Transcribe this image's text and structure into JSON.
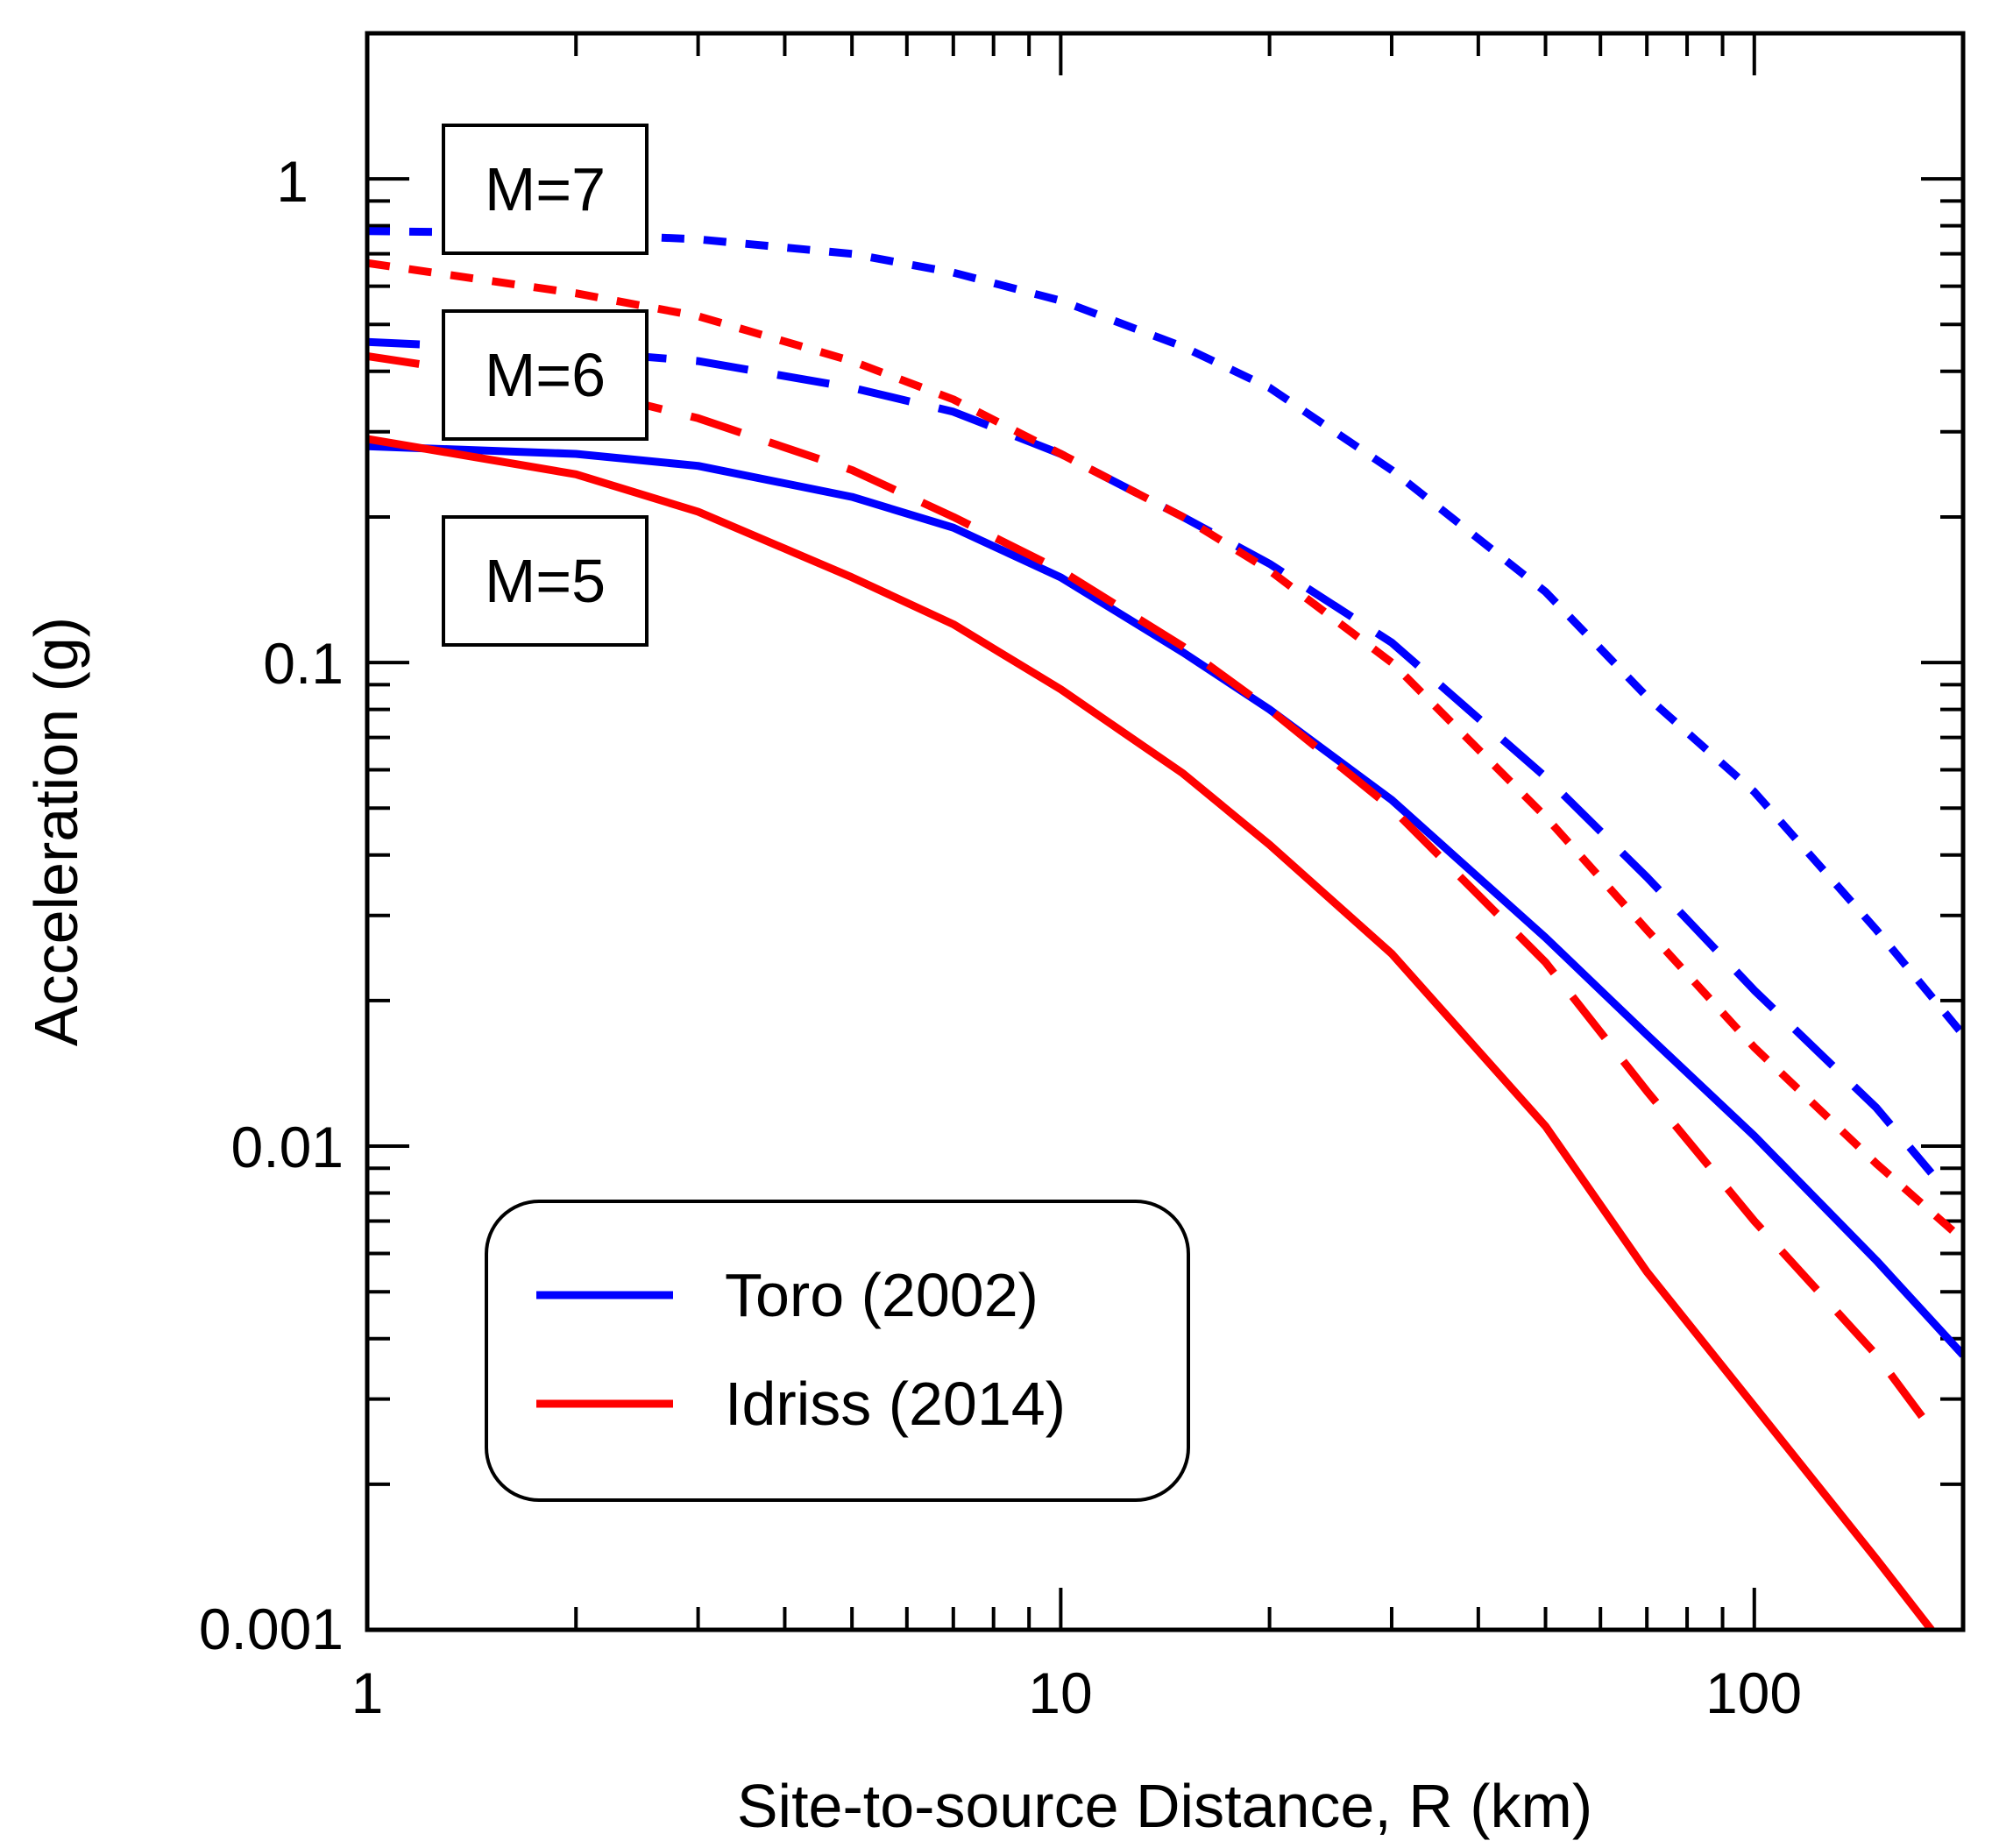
{
  "chart_data": {
    "type": "line",
    "title": "",
    "xlabel": "Site-to-source Distance, R (km)",
    "ylabel": "Acceleration (g)",
    "xscale": "log",
    "yscale": "log",
    "xlim": [
      1,
      200
    ],
    "ylim": [
      0.001,
      2
    ],
    "x_ticks": [
      {
        "value": 1,
        "label": "1"
      },
      {
        "value": 10,
        "label": "10"
      },
      {
        "value": 100,
        "label": "100"
      }
    ],
    "y_ticks": [
      {
        "value": 0.001,
        "label": "0.001"
      },
      {
        "value": 0.01,
        "label": "0.01"
      },
      {
        "value": 0.1,
        "label": "0.1"
      },
      {
        "value": 1,
        "label": "1"
      }
    ],
    "magnitude_labels": [
      {
        "label": "M=7",
        "magnitude": 7
      },
      {
        "label": "M=6",
        "magnitude": 6
      },
      {
        "label": "M=5",
        "magnitude": 5
      }
    ],
    "legend": {
      "position": "bottom-left",
      "entries": [
        {
          "label": "Toro (2002)",
          "color": "#0000ff"
        },
        {
          "label": "Idriss (2014)",
          "color": "#ff0000"
        }
      ]
    },
    "series": [
      {
        "model": "Toro (2002)",
        "magnitude": 5,
        "style": "solid",
        "color": "#0000ff",
        "x": [
          1,
          2,
          3,
          5,
          7,
          10,
          15,
          20,
          30,
          50,
          70,
          100,
          150,
          200
        ],
        "y": [
          0.28,
          0.27,
          0.255,
          0.22,
          0.19,
          0.15,
          0.105,
          0.08,
          0.052,
          0.027,
          0.017,
          0.0105,
          0.0058,
          0.0037
        ]
      },
      {
        "model": "Toro (2002)",
        "magnitude": 6,
        "style": "dashed",
        "color": "#0000ff",
        "x": [
          1,
          2,
          3,
          5,
          7,
          10,
          15,
          20,
          30,
          50,
          70,
          100,
          150,
          180
        ],
        "y": [
          0.46,
          0.44,
          0.42,
          0.37,
          0.33,
          0.27,
          0.2,
          0.16,
          0.11,
          0.058,
          0.036,
          0.021,
          0.012,
          0.0088
        ]
      },
      {
        "model": "Toro (2002)",
        "magnitude": 7,
        "style": "dotted",
        "color": "#0000ff",
        "x": [
          1,
          2,
          3,
          5,
          7,
          10,
          15,
          20,
          30,
          50,
          70,
          100,
          150,
          200
        ],
        "y": [
          0.78,
          0.77,
          0.75,
          0.7,
          0.64,
          0.56,
          0.45,
          0.37,
          0.25,
          0.14,
          0.085,
          0.054,
          0.028,
          0.017
        ]
      },
      {
        "model": "Idriss (2014)",
        "magnitude": 5,
        "style": "solid",
        "color": "#ff0000",
        "x": [
          1,
          2,
          3,
          5,
          7,
          10,
          15,
          20,
          30,
          50,
          70,
          100,
          150,
          180
        ],
        "y": [
          0.29,
          0.245,
          0.205,
          0.15,
          0.12,
          0.088,
          0.059,
          0.042,
          0.025,
          0.011,
          0.0055,
          0.0029,
          0.0014,
          0.001
        ]
      },
      {
        "model": "Idriss (2014)",
        "magnitude": 6,
        "style": "dashed",
        "color": "#ff0000",
        "x": [
          1,
          2,
          3,
          5,
          7,
          10,
          15,
          20,
          30,
          50,
          70,
          100,
          150,
          180
        ],
        "y": [
          0.43,
          0.37,
          0.32,
          0.25,
          0.2,
          0.155,
          0.108,
          0.08,
          0.05,
          0.024,
          0.013,
          0.007,
          0.0037,
          0.0026
        ]
      },
      {
        "model": "Idriss (2014)",
        "magnitude": 7,
        "style": "dotted",
        "color": "#ff0000",
        "x": [
          1,
          2,
          3,
          5,
          7,
          10,
          15,
          20,
          30,
          50,
          70,
          100,
          150,
          200
        ],
        "y": [
          0.67,
          0.58,
          0.52,
          0.42,
          0.35,
          0.27,
          0.2,
          0.155,
          0.1,
          0.048,
          0.028,
          0.016,
          0.0092,
          0.0064
        ]
      }
    ]
  }
}
